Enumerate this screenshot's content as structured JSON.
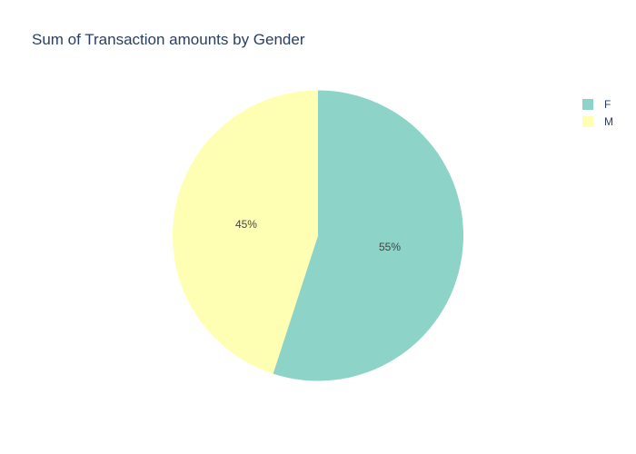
{
  "chart_data": {
    "type": "pie",
    "title": "Sum of Transaction amounts by Gender",
    "categories": [
      "F",
      "M"
    ],
    "values": [
      55,
      45
    ],
    "labels": [
      "55%",
      "45%"
    ],
    "colors": [
      "#8dd3c7",
      "#ffffb3"
    ],
    "legend": {
      "position": "top-right",
      "entries": [
        "F",
        "M"
      ]
    },
    "start_angle_deg": 90,
    "direction": "clockwise"
  }
}
